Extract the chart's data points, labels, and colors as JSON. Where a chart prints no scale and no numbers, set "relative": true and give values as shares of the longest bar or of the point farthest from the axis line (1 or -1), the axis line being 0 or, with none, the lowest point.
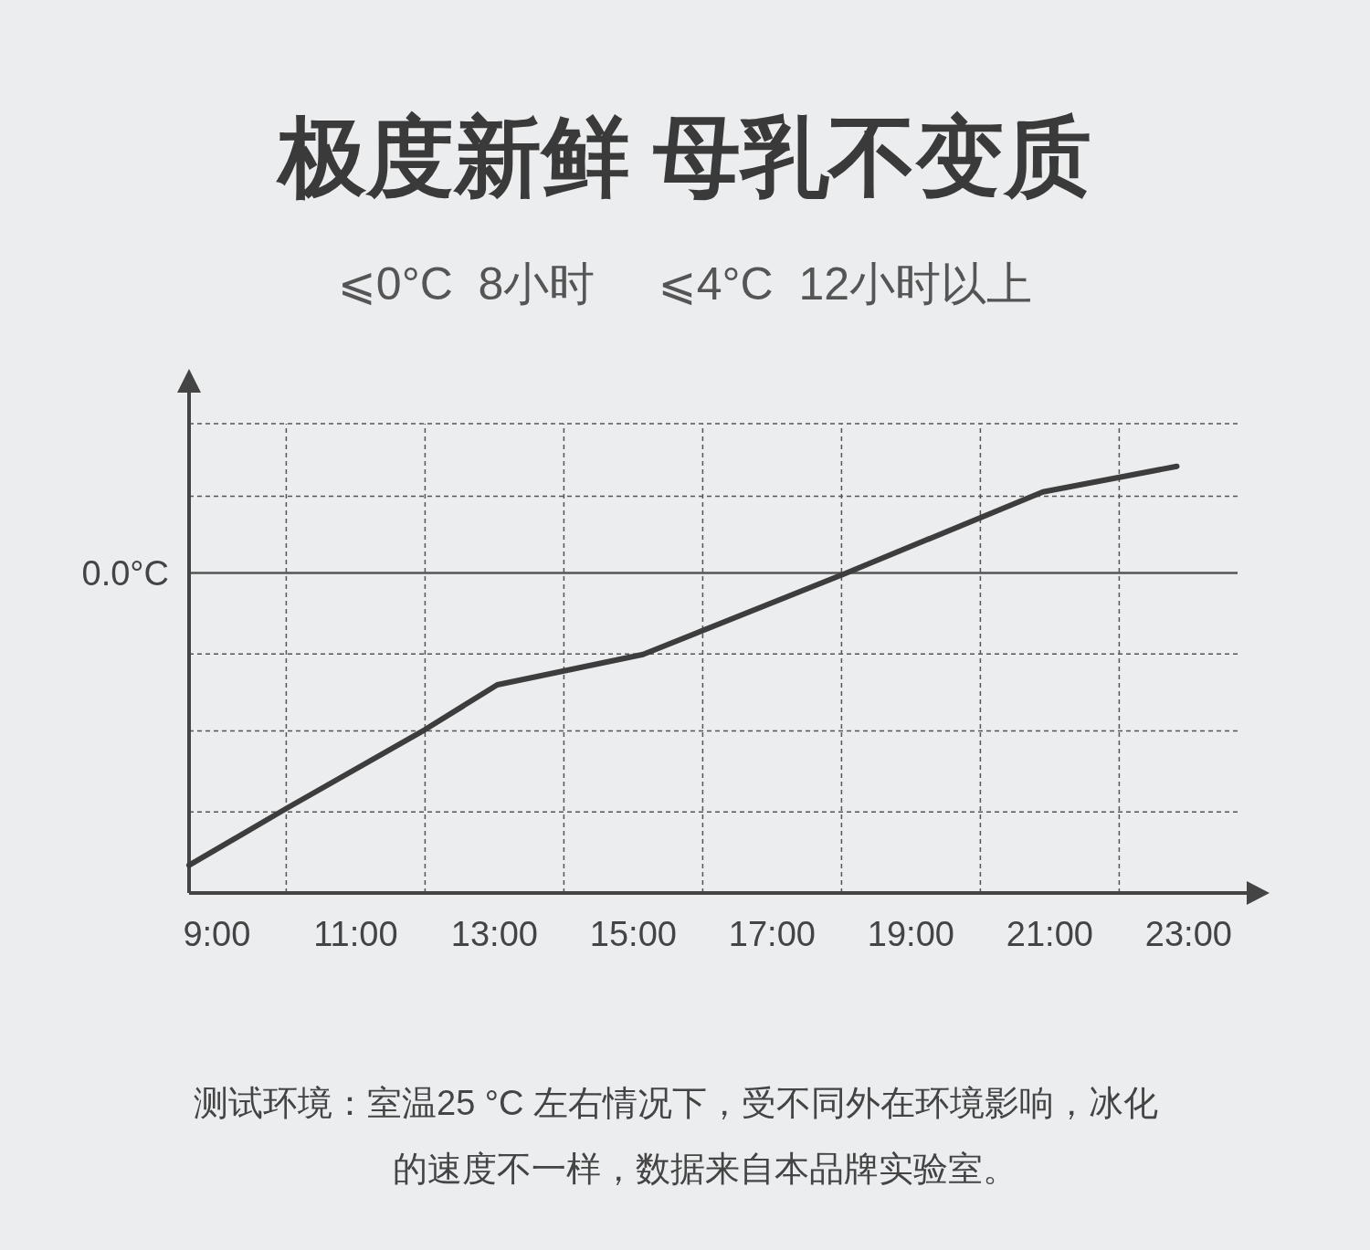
{
  "chart_data": {
    "type": "line",
    "title": "极度新鲜  母乳不变质",
    "subtitle": "⩽0°C  8小时     ⩽4°C  12小时以上",
    "relative": true,
    "x": [
      8.6,
      10,
      12,
      13.04,
      15.14,
      18.04,
      20.9,
      22.83
    ],
    "series": [
      {
        "color": "#3d3d3d",
        "values": [
          0.065,
          0.198,
          0.383,
          0.488,
          0.559,
          0.748,
          0.94,
          1
        ]
      }
    ],
    "xlim": [
      8.6,
      24.1
    ],
    "xticks": [
      {
        "value": 9,
        "label": "9:00"
      },
      {
        "value": 10,
        "label": null
      },
      {
        "value": 11,
        "label": "11:00"
      },
      {
        "value": 12,
        "label": null
      },
      {
        "value": 13,
        "label": "13:00"
      },
      {
        "value": 14,
        "label": null
      },
      {
        "value": 15,
        "label": "15:00"
      },
      {
        "value": 16,
        "label": null
      },
      {
        "value": 17,
        "label": "17:00"
      },
      {
        "value": 18,
        "label": null
      },
      {
        "value": 19,
        "label": "19:00"
      },
      {
        "value": 20,
        "label": null
      },
      {
        "value": 21,
        "label": "21:00"
      },
      {
        "value": 22,
        "label": null
      },
      {
        "value": 23,
        "label": "23:00"
      }
    ],
    "ref_lines": [
      {
        "axis": "y",
        "value": 0.19,
        "label": null,
        "line_style": "dashed"
      },
      {
        "axis": "y",
        "value": 0.38,
        "label": null,
        "line_style": "dashed"
      },
      {
        "axis": "y",
        "value": 0.56,
        "label": null,
        "line_style": "dashed"
      },
      {
        "axis": "y",
        "value": 0.75,
        "label": "0.0°C",
        "line_style": "solid"
      },
      {
        "axis": "y",
        "value": 0.93,
        "label": null,
        "line_style": "dashed"
      },
      {
        "axis": "y",
        "value": 1.1,
        "label": null,
        "line_style": "dashed"
      }
    ],
    "grid": "x",
    "line_style": "solid",
    "marker": "none",
    "annotations": [
      "测试环境：室温25 °C 左右情况下，受不同外在环境影响，冰化的速度不一样，数据来自本品牌实验室。"
    ]
  }
}
